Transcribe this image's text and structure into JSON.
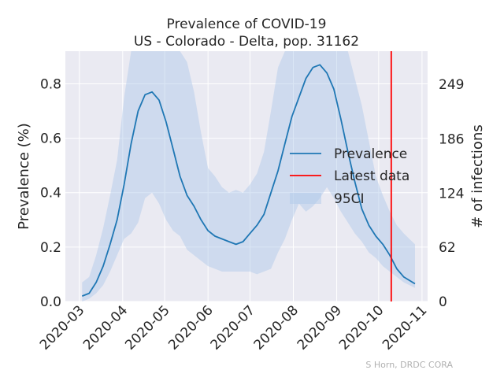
{
  "chart_data": {
    "type": "line",
    "title": "Prevalence of COVID-19",
    "subtitle": "US - Colorado - Delta, pop. 31162",
    "xlabel": "",
    "ylabel": "Prevalence (%)",
    "ylabel_right": "# of infections",
    "xlim": [
      "2020-02-20",
      "2020-11-05"
    ],
    "ylim": [
      0,
      0.92
    ],
    "grid": true,
    "legend_placement": "center-right",
    "x_ticks": [
      "2020-03",
      "2020-04",
      "2020-05",
      "2020-06",
      "2020-07",
      "2020-08",
      "2020-09",
      "2020-10",
      "2020-11"
    ],
    "y_ticks": [
      0.0,
      0.2,
      0.4,
      0.6,
      0.8
    ],
    "y_tick_labels": [
      "0.0",
      "0.2",
      "0.4",
      "0.6",
      "0.8"
    ],
    "y2_ticks": [
      0,
      62,
      124,
      186,
      249
    ],
    "y2_tick_labels": [
      "0",
      "62",
      "124",
      "186",
      "249"
    ],
    "y2_scale_per_percent": 311.62,
    "latest_data_date": "2020-10-10",
    "legend": {
      "prevalence": "Prevalence",
      "latest": "Latest data",
      "ci": "95CI"
    },
    "credit": "S Horn, DRDC CORA",
    "colors": {
      "line": "#1f77b4",
      "latest": "#ff0000",
      "ci_fill": "#aec7e8",
      "axes_bg": "#eaeaf2",
      "grid": "#ffffff"
    },
    "series": [
      {
        "name": "Prevalence",
        "x": [
          "2020-03-03",
          "2020-03-08",
          "2020-03-13",
          "2020-03-18",
          "2020-03-23",
          "2020-03-28",
          "2020-04-02",
          "2020-04-07",
          "2020-04-12",
          "2020-04-17",
          "2020-04-22",
          "2020-04-27",
          "2020-05-02",
          "2020-05-07",
          "2020-05-12",
          "2020-05-17",
          "2020-05-22",
          "2020-05-27",
          "2020-06-01",
          "2020-06-06",
          "2020-06-11",
          "2020-06-16",
          "2020-06-21",
          "2020-06-26",
          "2020-07-01",
          "2020-07-06",
          "2020-07-11",
          "2020-07-16",
          "2020-07-21",
          "2020-07-26",
          "2020-07-31",
          "2020-08-05",
          "2020-08-10",
          "2020-08-15",
          "2020-08-20",
          "2020-08-25",
          "2020-08-30",
          "2020-09-04",
          "2020-09-09",
          "2020-09-14",
          "2020-09-19",
          "2020-09-24",
          "2020-09-29",
          "2020-10-04",
          "2020-10-09",
          "2020-10-14",
          "2020-10-19",
          "2020-10-27"
        ],
        "y": [
          0.02,
          0.03,
          0.07,
          0.13,
          0.21,
          0.3,
          0.43,
          0.58,
          0.7,
          0.76,
          0.77,
          0.74,
          0.66,
          0.56,
          0.46,
          0.39,
          0.35,
          0.3,
          0.26,
          0.24,
          0.23,
          0.22,
          0.21,
          0.22,
          0.25,
          0.28,
          0.32,
          0.4,
          0.48,
          0.58,
          0.68,
          0.75,
          0.82,
          0.86,
          0.87,
          0.84,
          0.78,
          0.67,
          0.55,
          0.44,
          0.34,
          0.28,
          0.24,
          0.21,
          0.17,
          0.12,
          0.09,
          0.065
        ]
      }
    ],
    "ci_band": {
      "x": [
        "2020-03-03",
        "2020-03-08",
        "2020-03-13",
        "2020-03-18",
        "2020-03-23",
        "2020-03-28",
        "2020-04-02",
        "2020-04-07",
        "2020-04-12",
        "2020-04-17",
        "2020-04-22",
        "2020-04-27",
        "2020-05-02",
        "2020-05-07",
        "2020-05-12",
        "2020-05-17",
        "2020-05-22",
        "2020-05-27",
        "2020-06-01",
        "2020-06-06",
        "2020-06-11",
        "2020-06-16",
        "2020-06-21",
        "2020-06-26",
        "2020-07-01",
        "2020-07-06",
        "2020-07-11",
        "2020-07-16",
        "2020-07-21",
        "2020-07-26",
        "2020-07-31",
        "2020-08-05",
        "2020-08-10",
        "2020-08-15",
        "2020-08-20",
        "2020-08-25",
        "2020-08-30",
        "2020-09-04",
        "2020-09-09",
        "2020-09-14",
        "2020-09-19",
        "2020-09-24",
        "2020-09-29",
        "2020-10-04",
        "2020-10-09",
        "2020-10-14",
        "2020-10-19",
        "2020-10-27"
      ],
      "lower": [
        0.0,
        0.01,
        0.03,
        0.06,
        0.11,
        0.17,
        0.23,
        0.25,
        0.29,
        0.38,
        0.4,
        0.36,
        0.3,
        0.26,
        0.24,
        0.19,
        0.17,
        0.15,
        0.13,
        0.12,
        0.11,
        0.11,
        0.11,
        0.11,
        0.11,
        0.1,
        0.11,
        0.12,
        0.18,
        0.23,
        0.3,
        0.36,
        0.33,
        0.35,
        0.38,
        0.42,
        0.38,
        0.33,
        0.29,
        0.25,
        0.22,
        0.18,
        0.16,
        0.13,
        0.11,
        0.09,
        0.07,
        0.05
      ],
      "upper": [
        0.07,
        0.09,
        0.17,
        0.27,
        0.39,
        0.52,
        0.75,
        0.92,
        0.92,
        0.92,
        0.92,
        0.92,
        0.92,
        0.92,
        0.92,
        0.88,
        0.77,
        0.62,
        0.49,
        0.46,
        0.42,
        0.4,
        0.41,
        0.4,
        0.43,
        0.47,
        0.55,
        0.7,
        0.86,
        0.92,
        0.92,
        0.92,
        0.92,
        0.92,
        0.92,
        0.92,
        0.92,
        0.92,
        0.92,
        0.82,
        0.72,
        0.59,
        0.46,
        0.39,
        0.33,
        0.28,
        0.25,
        0.21
      ]
    }
  }
}
